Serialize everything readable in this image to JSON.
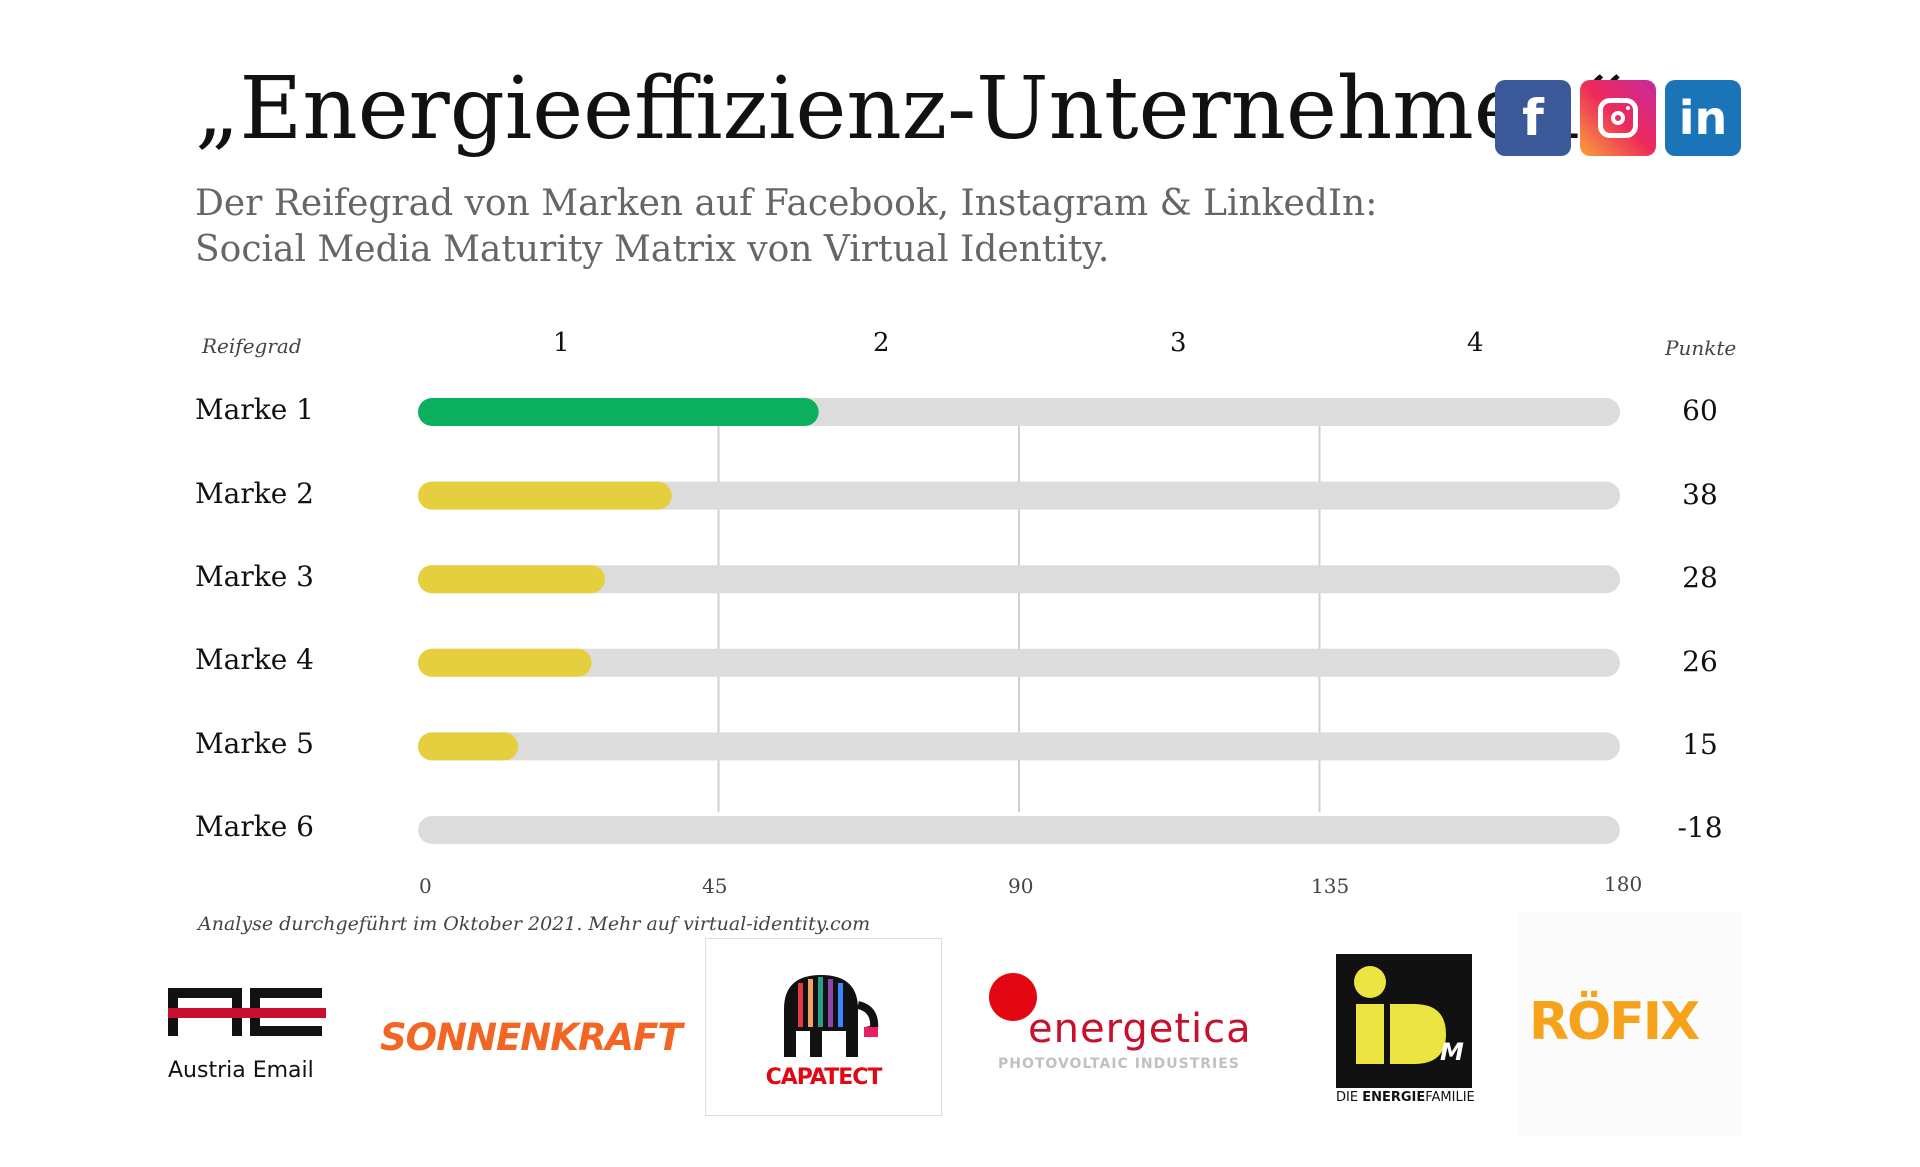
{
  "title": "„Energieeffizienz-Unternehmen“",
  "subtitle_line1": "Der Reifegrad von Marken auf Facebook, Instagram & LinkedIn:",
  "subtitle_line2": "Social Media Maturity Matrix von Virtual Identity.",
  "social": {
    "facebook_glyph": "f",
    "linkedin_glyph": "in",
    "facebook_color": "#3b5998",
    "linkedin_color": "#1b74b8"
  },
  "chart_data": {
    "type": "bar",
    "orientation": "horizontal",
    "row_header": "Reifegrad",
    "points_header": "Punkte",
    "levels": [
      "1",
      "2",
      "3",
      "4"
    ],
    "categories": [
      "Marke 1",
      "Marke 2",
      "Marke 3",
      "Marke 4",
      "Marke 5",
      "Marke 6"
    ],
    "values": [
      60,
      38,
      28,
      26,
      15,
      -18
    ],
    "value_labels": [
      "60",
      "38",
      "28",
      "26",
      "15",
      "-18"
    ],
    "colors": [
      "#0bb05f",
      "#e6cf3f",
      "#e6cf3f",
      "#e6cf3f",
      "#e6cf3f",
      "#e6cf3f"
    ],
    "track_color": "#dcdcdc",
    "xlim": [
      0,
      180
    ],
    "xticks": [
      0,
      45,
      90,
      135,
      180
    ],
    "xtick_labels": [
      "0",
      "45",
      "90",
      "135",
      "180"
    ],
    "gridlines": [
      45,
      90,
      135
    ]
  },
  "footnote": "Analyse durchgeführt im Oktober 2021. Mehr auf virtual-identity.com",
  "logos": {
    "austria_email": "Austria Email",
    "sonnenkraft": "SONNENKRAFT",
    "capatect": "CAPATECT",
    "energetica": "energetica",
    "energetica_sub": "PHOTOVOLTAIC INDUSTRIES",
    "idm": "iD",
    "idm_m": "M",
    "idm_tag_plain": "DIE ",
    "idm_tag_bold": "ENERGIE",
    "idm_tag_rest": "FAMILIE",
    "roefix": "RÖFIX"
  }
}
